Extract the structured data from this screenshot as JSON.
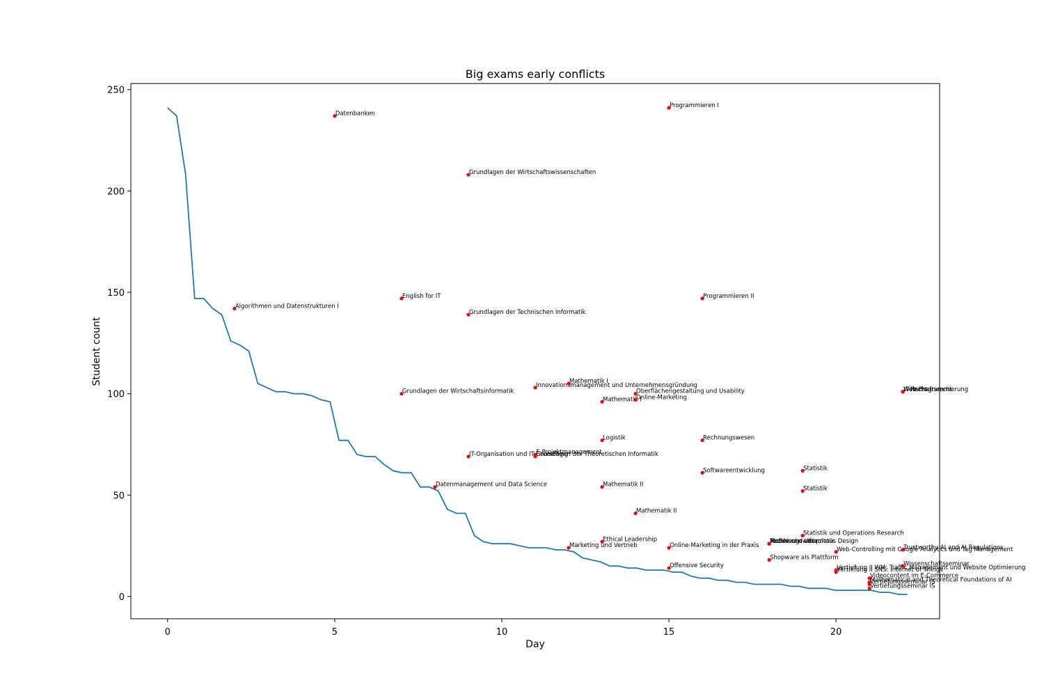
{
  "chart_data": {
    "type": "line",
    "title": "Big exams early conflicts",
    "xlabel": "Day",
    "ylabel": "Student count",
    "xlim": [
      -1.1,
      23.1
    ],
    "ylim": [
      -11,
      253
    ],
    "xticks": [
      0,
      5,
      10,
      15,
      20
    ],
    "yticks": [
      0,
      50,
      100,
      150,
      200,
      250
    ],
    "grid": false,
    "colors": {
      "line": "#1f77b4",
      "points": "#ff0000"
    },
    "series": [
      {
        "x": [
          0,
          0.27,
          0.54,
          0.81,
          1.08,
          1.35,
          1.62,
          1.89,
          2.16,
          2.43,
          2.7,
          2.97,
          3.24,
          3.51,
          3.78,
          4.05,
          4.32,
          4.59,
          4.86,
          5.13,
          5.4,
          5.67,
          5.94,
          6.21,
          6.48,
          6.75,
          7.02,
          7.29,
          7.56,
          7.83,
          8.1,
          8.37,
          8.64,
          8.91,
          9.18,
          9.45,
          9.72,
          9.99,
          10.26,
          10.53,
          10.8,
          11.07,
          11.34,
          11.61,
          11.88,
          12.15,
          12.42,
          12.69,
          12.96,
          13.23,
          13.5,
          13.77,
          14.04,
          14.31,
          14.58,
          14.85,
          15.12,
          15.39,
          15.66,
          15.93,
          16.2,
          16.47,
          16.74,
          17.01,
          17.28,
          17.55,
          17.82,
          18.09,
          18.36,
          18.63,
          18.9,
          19.17,
          19.44,
          19.71,
          19.98,
          20.25,
          20.52,
          20.79,
          21.06,
          21.33,
          21.6,
          21.87,
          22.14
        ],
        "values": [
          241,
          237,
          208,
          147,
          147,
          142,
          139,
          126,
          124,
          121,
          105,
          103,
          101,
          101,
          100,
          100,
          99,
          97,
          96,
          77,
          77,
          70,
          69,
          69,
          65,
          62,
          61,
          61,
          54,
          54,
          52,
          43,
          41,
          41,
          30,
          27,
          26,
          26,
          26,
          25,
          24,
          24,
          24,
          23,
          23,
          22,
          19,
          18,
          17,
          15,
          15,
          14,
          14,
          13,
          13,
          13,
          12,
          12,
          10,
          9,
          9,
          8,
          8,
          7,
          7,
          6,
          6,
          6,
          6,
          5,
          5,
          4,
          4,
          4,
          3,
          3,
          3,
          3,
          3,
          2,
          2,
          1,
          1
        ]
      }
    ],
    "points": [
      {
        "x": 2,
        "y": 142,
        "label": "Algorithmen und Datenstrukturen I"
      },
      {
        "x": 5,
        "y": 237,
        "label": "Datenbanken"
      },
      {
        "x": 7,
        "y": 147,
        "label": "English for IT"
      },
      {
        "x": 7,
        "y": 100,
        "label": "Grundlagen der Wirtschaftsinformatik"
      },
      {
        "x": 8,
        "y": 54,
        "label": "Datenmanagement und Data Science"
      },
      {
        "x": 9,
        "y": 208,
        "label": "Grundlagen der Wirtschaftswissenschaften"
      },
      {
        "x": 9,
        "y": 139,
        "label": "Grundlagen der Technischen Informatik"
      },
      {
        "x": 9,
        "y": 69,
        "label": "IT-Organisation und IT-Controlling"
      },
      {
        "x": 11,
        "y": 103,
        "label": "Innovationsmanagement und Unternehmensgründung"
      },
      {
        "x": 11,
        "y": 70,
        "label": "E-Projektmanagement"
      },
      {
        "x": 11,
        "y": 69,
        "label": "Grundlagen der Theoretischen Informatik"
      },
      {
        "x": 12,
        "y": 105,
        "label": "Mathematik I"
      },
      {
        "x": 12,
        "y": 24,
        "label": "Marketing und Vertrieb"
      },
      {
        "x": 13,
        "y": 96,
        "label": "Mathematik I"
      },
      {
        "x": 13,
        "y": 77,
        "label": "Logistik"
      },
      {
        "x": 13,
        "y": 54,
        "label": "Mathematik II"
      },
      {
        "x": 13,
        "y": 27,
        "label": "Ethical Leadership"
      },
      {
        "x": 14,
        "y": 100,
        "label": "Oberflächengestaltung und Usability"
      },
      {
        "x": 14,
        "y": 97,
        "label": "Online-Marketing"
      },
      {
        "x": 14,
        "y": 41,
        "label": "Mathematik II"
      },
      {
        "x": 15,
        "y": 241,
        "label": "Programmieren I"
      },
      {
        "x": 15,
        "y": 24,
        "label": "Online-Marketing in der Praxis"
      },
      {
        "x": 15,
        "y": 14,
        "label": "Offensive Security"
      },
      {
        "x": 16,
        "y": 147,
        "label": "Programmieren II"
      },
      {
        "x": 16,
        "y": 77,
        "label": "Rechnungswesen"
      },
      {
        "x": 16,
        "y": 61,
        "label": "Softwareentwicklung"
      },
      {
        "x": 18,
        "y": 26,
        "label": "Rechnungswesen"
      },
      {
        "x": 18,
        "y": 26,
        "label": "Technische Informatik"
      },
      {
        "x": 18,
        "y": 26,
        "label": "Mobile und Ubiquitous Design"
      },
      {
        "x": 18,
        "y": 18,
        "label": "Shopware als Plattform"
      },
      {
        "x": 19,
        "y": 62,
        "label": "Statistik"
      },
      {
        "x": 19,
        "y": 52,
        "label": "Statistik"
      },
      {
        "x": 19,
        "y": 30,
        "label": "Statistik und Operations Research"
      },
      {
        "x": 20,
        "y": 22,
        "label": "Web-Controlling mit Google Analytics und Tag Management"
      },
      {
        "x": 20,
        "y": 13,
        "label": "Vertiefung II WM: Traffic Management und Website Optimierung"
      },
      {
        "x": 20,
        "y": 12,
        "label": "Vertiefung II SNS: Internet of Things"
      },
      {
        "x": 21,
        "y": 9,
        "label": "Videocontent im E-Commerce"
      },
      {
        "x": 21,
        "y": 7,
        "label": "Mathematical and Theoretical Foundations of AI"
      },
      {
        "x": 21,
        "y": 6,
        "label": "Vertiefungsseminar IS"
      },
      {
        "x": 21,
        "y": 4,
        "label": "Vertiefungsseminar IS"
      },
      {
        "x": 22,
        "y": 101,
        "label": "Wirtschaftsrecht"
      },
      {
        "x": 22,
        "y": 101,
        "label": "Web-Programmierung"
      },
      {
        "x": 22,
        "y": 101,
        "label": "IT-Recht"
      },
      {
        "x": 22,
        "y": 23,
        "label": "Trustworthy AI and AI Regulations"
      },
      {
        "x": 22,
        "y": 15,
        "label": "Wissenschaftsseminar"
      }
    ]
  }
}
